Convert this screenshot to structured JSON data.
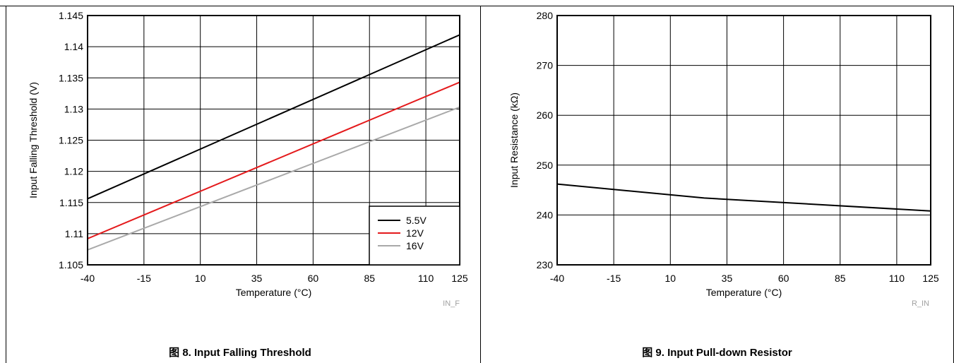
{
  "chart_data": [
    {
      "type": "line",
      "xlabel": "Temperature (°C)",
      "ylabel": "Input Falling Threshold (V)",
      "xticks": [
        -40,
        -15,
        10,
        35,
        60,
        85,
        110,
        125
      ],
      "xlim": [
        -40,
        125
      ],
      "yticks": [
        1.105,
        1.11,
        1.115,
        1.12,
        1.125,
        1.13,
        1.135,
        1.14,
        1.145
      ],
      "ytick_labels": [
        "1.105",
        "1.11",
        "1.115",
        "1.12",
        "1.125",
        "1.13",
        "1.135",
        "1.14",
        "1.145"
      ],
      "ylim": [
        1.105,
        1.145
      ],
      "grid": true,
      "legend": "bottom-right",
      "code": "IN_F",
      "caption": "图 8. Input Falling Threshold",
      "series": [
        {
          "name": "5.5V",
          "color": "#000000",
          "x": [
            -40,
            125
          ],
          "y": [
            1.1156,
            1.1419
          ]
        },
        {
          "name": "12V",
          "color": "#e41a1c",
          "x": [
            -40,
            125
          ],
          "y": [
            1.1092,
            1.1343
          ]
        },
        {
          "name": "16V",
          "color": "#a9a9a9",
          "x": [
            -40,
            125
          ],
          "y": [
            1.1074,
            1.1303
          ]
        }
      ]
    },
    {
      "type": "line",
      "xlabel": "Temperature (°C)",
      "ylabel": "Input Resistance (kΩ)",
      "xticks": [
        -40,
        -15,
        10,
        35,
        60,
        85,
        110,
        125
      ],
      "xlim": [
        -40,
        125
      ],
      "yticks": [
        230,
        240,
        250,
        260,
        270,
        280
      ],
      "ytick_labels": [
        "230",
        "240",
        "250",
        "260",
        "270",
        "280"
      ],
      "ylim": [
        230,
        280
      ],
      "grid": true,
      "code": "R_IN",
      "caption": "图 9. Input Pull-down Resistor",
      "series": [
        {
          "color": "#000000",
          "x": [
            -40,
            25,
            125
          ],
          "y": [
            246.2,
            243.4,
            240.8
          ]
        }
      ]
    }
  ]
}
